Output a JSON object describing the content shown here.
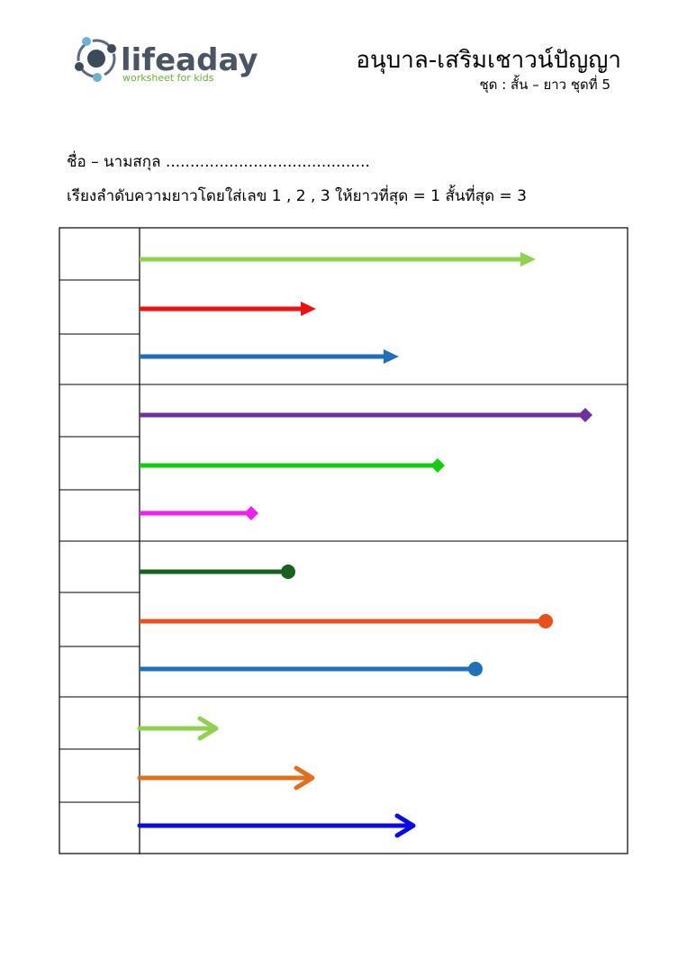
{
  "logo": {
    "name": "lifeaday",
    "tagline": "worksheet for kids"
  },
  "header": {
    "title": "อนุบาล-เสริมเชาวน์ปัญญา",
    "subtitle": "ชุด : สั้น – ยาว ชุดที่ 5"
  },
  "name_line": "ชื่อ – นามสกุล ..........................................",
  "instruction": "เรียงลำดับความยาวโดยใส่เลข 1 , 2 , 3  ให้ยาวที่สุด = 1   สั้นที่สุด = 3"
}
